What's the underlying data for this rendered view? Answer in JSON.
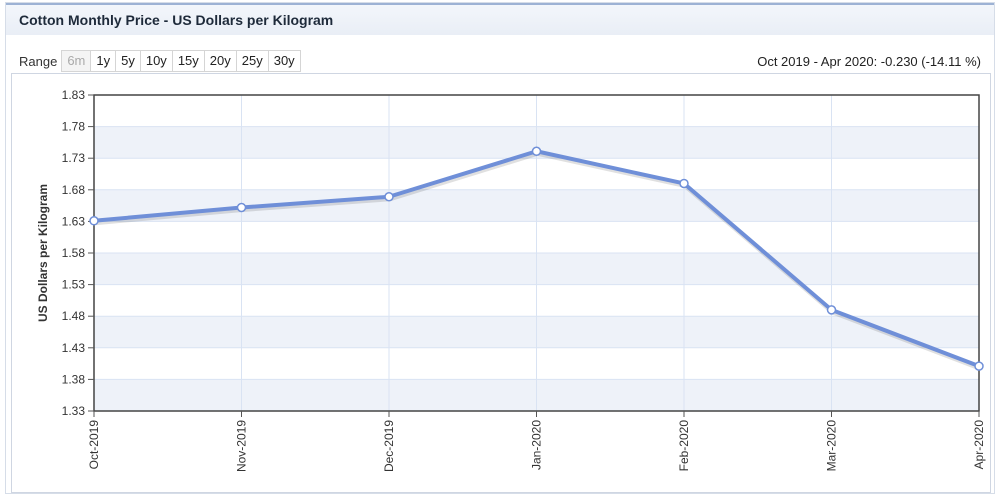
{
  "header": {
    "title": "Cotton Monthly Price - US Dollars per Kilogram"
  },
  "range": {
    "label": "Range",
    "buttons": [
      {
        "label": "6m",
        "disabled": true
      },
      {
        "label": "1y"
      },
      {
        "label": "5y"
      },
      {
        "label": "10y"
      },
      {
        "label": "15y"
      },
      {
        "label": "20y"
      },
      {
        "label": "25y"
      },
      {
        "label": "30y"
      }
    ]
  },
  "change_text": "Oct 2019 - Apr 2020: -0.230 (-14.11 %)",
  "chart_data": {
    "type": "line",
    "title": "",
    "xlabel": "",
    "ylabel": "US Dollars per Kilogram",
    "categories": [
      "Oct-2019",
      "Nov-2019",
      "Dec-2019",
      "Jan-2020",
      "Feb-2020",
      "Mar-2020",
      "Apr-2020"
    ],
    "series": [
      {
        "values": [
          1.631,
          1.652,
          1.669,
          1.741,
          1.69,
          1.49,
          1.401
        ]
      }
    ],
    "ylim": [
      1.33,
      1.83
    ],
    "yticks": [
      "1.83",
      "1.78",
      "1.73",
      "1.68",
      "1.63",
      "1.58",
      "1.53",
      "1.48",
      "1.43",
      "1.38",
      "1.33"
    ],
    "grid": true,
    "colors": {
      "line": "#6f8fd8",
      "marker_fill": "#ffffff",
      "band": "#eef2f9",
      "grid": "#d9e3f3"
    }
  }
}
